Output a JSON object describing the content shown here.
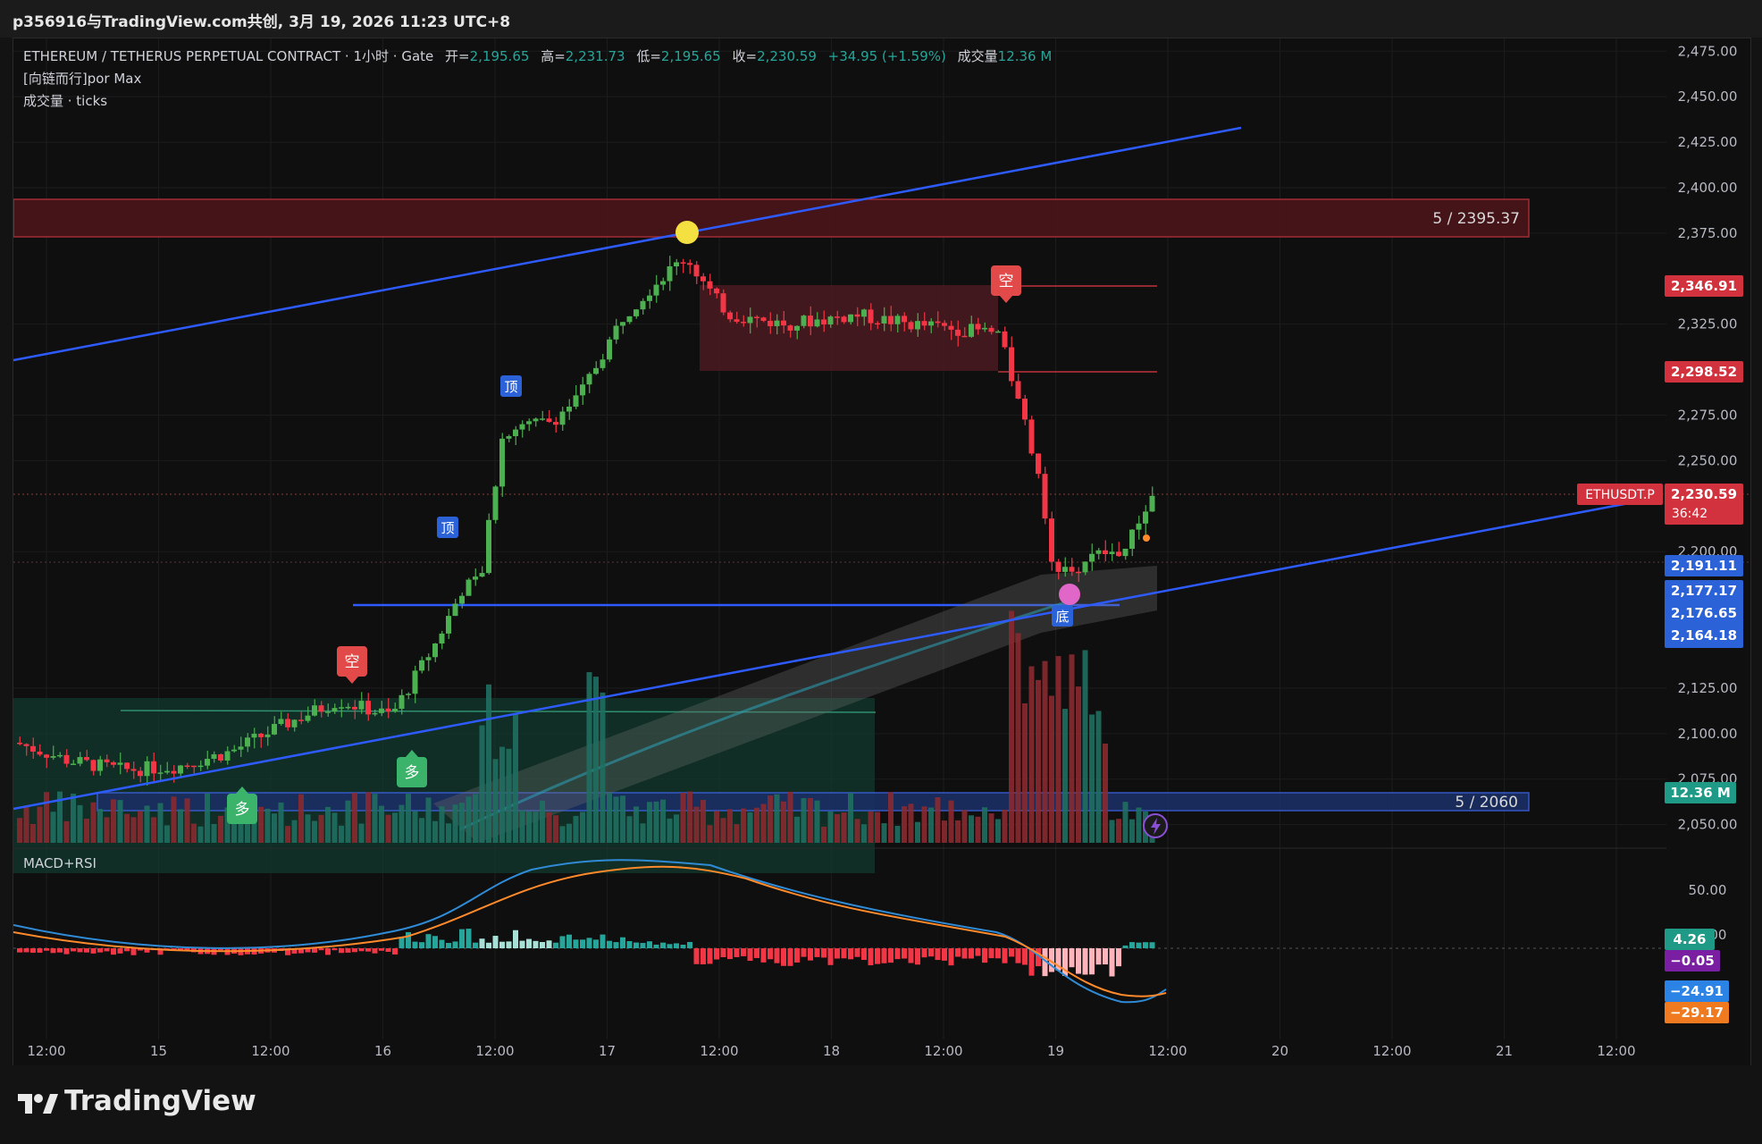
{
  "header": {
    "share_text": "p356916与TradingView.com共创, 3月 19, 2026 11:23 UTC+8"
  },
  "legend": {
    "symbol_line": "ETHEREUM / TETHERUS PERPETUAL CONTRACT · 1小时 · Gate",
    "open_label": "开=",
    "open_value": "2,195.65",
    "high_label": "高=",
    "high_value": "2,231.73",
    "low_label": "低=",
    "low_value": "2,195.65",
    "close_label": "收=",
    "close_value": "2,230.59",
    "change": "+34.95 (+1.59%)",
    "volume_label": "成交量",
    "volume_value": "12.36 M",
    "indicator_1": "[向链而行]por Max",
    "indicator_2": "成交量 · ticks",
    "macd_label": "MACD+RSI"
  },
  "zones": {
    "upper_zone_label": "5 / 2395.37",
    "lower_zone_label": "5 / 2060"
  },
  "markers": {
    "top_label": "顶",
    "bottom_label": "底",
    "short_label": "空",
    "long_label": "多"
  },
  "price_tags": {
    "ticker": "ETHUSDT.P",
    "current_price": "2,230.59",
    "countdown": "36:42",
    "tag_2346": "2,346.91",
    "tag_2298": "2,298.52",
    "tag_2191": "2,191.11",
    "tag_2177": "2,177.17",
    "tag_2176": "2,176.65",
    "tag_2164": "2,164.18",
    "volume_tag": "12.36 M",
    "macd_tag_1": "4.26",
    "macd_tag_2": "−0.05",
    "macd_tag_3": "−24.91",
    "macd_tag_4": "−29.17"
  },
  "branding": {
    "name": "TradingView"
  },
  "colors": {
    "up": "#4caf50",
    "down": "#f23645",
    "trendline": "#2e5bff",
    "zone_red": "#5a1a1e",
    "zone_green": "#1a4a3a"
  },
  "chart_data": {
    "type": "candlestick",
    "price_axis_ticks": [
      2475,
      2450,
      2425,
      2400,
      2375,
      2325,
      2275,
      2250,
      2200,
      2125,
      2100,
      2075,
      2050
    ],
    "price_axis_labels": [
      "2,475.00",
      "2,450.00",
      "2,425.00",
      "2,400.00",
      "2,375.00",
      "2,325.00",
      "2,275.00",
      "2,250.00",
      "2,200.00",
      "2,125.00",
      "2,100.00",
      "2,075.00",
      "2,050.00"
    ],
    "ylim": [
      2040,
      2482
    ],
    "macd_axis_labels": [
      "50.00",
      "25.00"
    ],
    "time_axis_labels": [
      "12:00",
      "15",
      "12:00",
      "16",
      "12:00",
      "17",
      "12:00",
      "18",
      "12:00",
      "19",
      "12:00",
      "20",
      "12:00",
      "21",
      "12:00"
    ],
    "last_price": 2230.59
  }
}
